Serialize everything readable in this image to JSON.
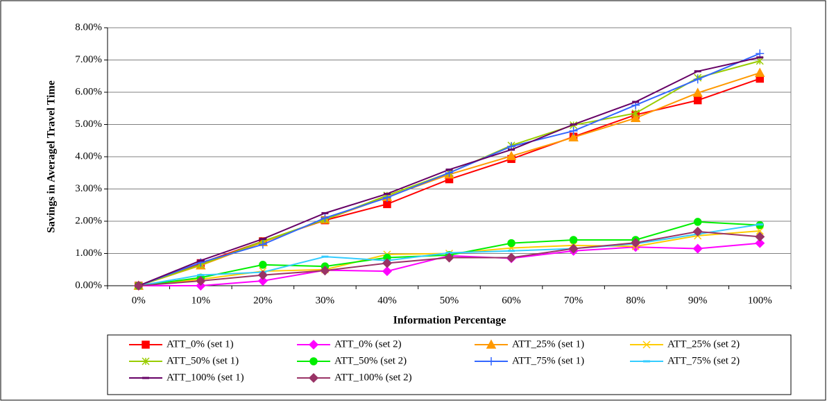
{
  "chart_data": {
    "type": "line",
    "y_label": "Savings in Averagel Travel Time",
    "x_label": "Information Percentage",
    "categories": [
      "0%",
      "10%",
      "20%",
      "30%",
      "40%",
      "50%",
      "60%",
      "70%",
      "80%",
      "90%",
      "100%"
    ],
    "ylim": [
      0,
      8
    ],
    "yticks": [
      {
        "value": 0,
        "label": "0.00%"
      },
      {
        "value": 1,
        "label": "1.00%"
      },
      {
        "value": 2,
        "label": "2.00%"
      },
      {
        "value": 3,
        "label": "3.00%"
      },
      {
        "value": 4,
        "label": "4.00%"
      },
      {
        "value": 5,
        "label": "5.00%"
      },
      {
        "value": 6,
        "label": "6.00%"
      },
      {
        "value": 7,
        "label": "7.00%"
      },
      {
        "value": 8,
        "label": "8.00%"
      }
    ],
    "grid": true,
    "legend": "bottom",
    "series": [
      {
        "name": "ATT_0% (set 1)",
        "color": "#ff0000",
        "marker": "square",
        "values": [
          0,
          0.7,
          1.38,
          2.03,
          2.53,
          3.3,
          3.93,
          4.62,
          5.3,
          5.75,
          6.42
        ]
      },
      {
        "name": "ATT_0% (set 2)",
        "color": "#ff00ff",
        "marker": "diamond",
        "values": [
          0,
          0,
          0.15,
          0.48,
          0.45,
          0.93,
          0.85,
          1.08,
          1.2,
          1.15,
          1.32
        ]
      },
      {
        "name": "ATT_25% (set 1)",
        "color": "#ff9900",
        "marker": "triangle",
        "values": [
          0,
          0.63,
          1.35,
          2.05,
          2.75,
          3.45,
          4.02,
          4.6,
          5.2,
          5.98,
          6.6
        ]
      },
      {
        "name": "ATT_25% (set 2)",
        "color": "#ffcc00",
        "marker": "x",
        "values": [
          0,
          0.2,
          0.45,
          0.5,
          0.97,
          1.0,
          1.17,
          1.25,
          1.22,
          1.55,
          1.7
        ]
      },
      {
        "name": "ATT_50% (set 1)",
        "color": "#99cc00",
        "marker": "star",
        "values": [
          0,
          0.65,
          1.38,
          2.05,
          2.8,
          3.5,
          4.35,
          4.98,
          5.35,
          6.45,
          6.97
        ]
      },
      {
        "name": "ATT_50% (set 2)",
        "color": "#00ee00",
        "marker": "circle",
        "values": [
          0,
          0.25,
          0.65,
          0.6,
          0.87,
          0.95,
          1.32,
          1.42,
          1.42,
          1.98,
          1.88
        ]
      },
      {
        "name": "ATT_75% (set 1)",
        "color": "#3366ff",
        "marker": "plus",
        "values": [
          0,
          0.72,
          1.28,
          2.1,
          2.73,
          3.5,
          4.32,
          4.8,
          5.6,
          6.4,
          7.2
        ]
      },
      {
        "name": "ATT_75% (set 2)",
        "color": "#33ccff",
        "marker": "dash",
        "values": [
          0,
          0.33,
          0.42,
          0.9,
          0.78,
          1.02,
          1.08,
          1.15,
          1.3,
          1.6,
          1.9
        ]
      },
      {
        "name": "ATT_100% (set 1)",
        "color": "#660066",
        "marker": "dash",
        "values": [
          0,
          0.78,
          1.45,
          2.25,
          2.85,
          3.6,
          4.22,
          5.0,
          5.7,
          6.65,
          7.08
        ]
      },
      {
        "name": "ATT_100% (set 2)",
        "color": "#993366",
        "marker": "diamond",
        "values": [
          0,
          0.15,
          0.33,
          0.47,
          0.7,
          0.87,
          0.87,
          1.15,
          1.33,
          1.68,
          1.52
        ]
      }
    ]
  }
}
